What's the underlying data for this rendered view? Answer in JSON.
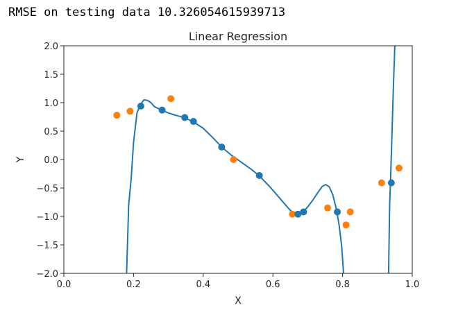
{
  "console": {
    "text": "RMSE on testing data 10.326054615939713"
  },
  "chart_data": {
    "type": "scatter",
    "title": "Linear Regression",
    "xlabel": "X",
    "ylabel": "Y",
    "xlim": [
      0.0,
      1.0
    ],
    "ylim": [
      -2.0,
      2.0
    ],
    "x_ticks": [
      "0.0",
      "0.2",
      "0.4",
      "0.6",
      "0.8",
      "1.0"
    ],
    "y_ticks": [
      "2.0",
      "1.5",
      "1.0",
      "0.5",
      "0.0",
      "−0.5",
      "−1.0",
      "−1.5",
      "−2.0"
    ],
    "grid": false,
    "colors": {
      "blue": "#1f77b4",
      "orange": "#ff7f0e"
    },
    "series": [
      {
        "kind": "line",
        "color": "#1f77b4",
        "points": [
          [
            0.18,
            -2.0
          ],
          [
            0.186,
            -0.8
          ],
          [
            0.193,
            -0.35
          ],
          [
            0.2,
            0.3
          ],
          [
            0.21,
            0.82
          ],
          [
            0.22,
            0.97
          ],
          [
            0.23,
            1.05
          ],
          [
            0.24,
            1.04
          ],
          [
            0.25,
            1.0
          ],
          [
            0.26,
            0.93
          ],
          [
            0.28,
            0.87
          ],
          [
            0.3,
            0.82
          ],
          [
            0.32,
            0.78
          ],
          [
            0.345,
            0.74
          ],
          [
            0.37,
            0.67
          ],
          [
            0.4,
            0.55
          ],
          [
            0.43,
            0.37
          ],
          [
            0.453,
            0.22
          ],
          [
            0.48,
            0.08
          ],
          [
            0.51,
            -0.05
          ],
          [
            0.54,
            -0.18
          ],
          [
            0.56,
            -0.28
          ],
          [
            0.59,
            -0.47
          ],
          [
            0.62,
            -0.68
          ],
          [
            0.645,
            -0.86
          ],
          [
            0.66,
            -0.95
          ],
          [
            0.672,
            -0.97
          ],
          [
            0.687,
            -0.92
          ],
          [
            0.7,
            -0.83
          ],
          [
            0.715,
            -0.71
          ],
          [
            0.73,
            -0.57
          ],
          [
            0.742,
            -0.47
          ],
          [
            0.752,
            -0.44
          ],
          [
            0.762,
            -0.48
          ],
          [
            0.772,
            -0.62
          ],
          [
            0.782,
            -0.87
          ],
          [
            0.79,
            -1.15
          ],
          [
            0.797,
            -1.5
          ],
          [
            0.803,
            -2.0
          ]
        ]
      },
      {
        "kind": "line",
        "color": "#1f77b4",
        "points": [
          [
            0.932,
            -2.0
          ],
          [
            0.935,
            -0.8
          ],
          [
            0.938,
            -0.3
          ],
          [
            0.942,
            0.5
          ],
          [
            0.946,
            1.3
          ],
          [
            0.95,
            2.0
          ]
        ]
      },
      {
        "kind": "scatter",
        "color": "#ff7f0e",
        "points": [
          [
            0.152,
            0.78
          ],
          [
            0.19,
            0.85
          ],
          [
            0.307,
            1.07
          ],
          [
            0.487,
            0.0
          ],
          [
            0.656,
            -0.96
          ],
          [
            0.757,
            -0.85
          ],
          [
            0.81,
            -1.15
          ],
          [
            0.822,
            -0.92
          ],
          [
            0.912,
            -0.41
          ],
          [
            0.962,
            -0.15
          ]
        ]
      },
      {
        "kind": "scatter",
        "color": "#1f77b4",
        "points": [
          [
            0.221,
            0.94
          ],
          [
            0.282,
            0.87
          ],
          [
            0.347,
            0.74
          ],
          [
            0.372,
            0.67
          ],
          [
            0.453,
            0.22
          ],
          [
            0.561,
            -0.28
          ],
          [
            0.672,
            -0.96
          ],
          [
            0.688,
            -0.92
          ],
          [
            0.785,
            -0.92
          ],
          [
            0.94,
            -0.41
          ]
        ]
      }
    ]
  }
}
